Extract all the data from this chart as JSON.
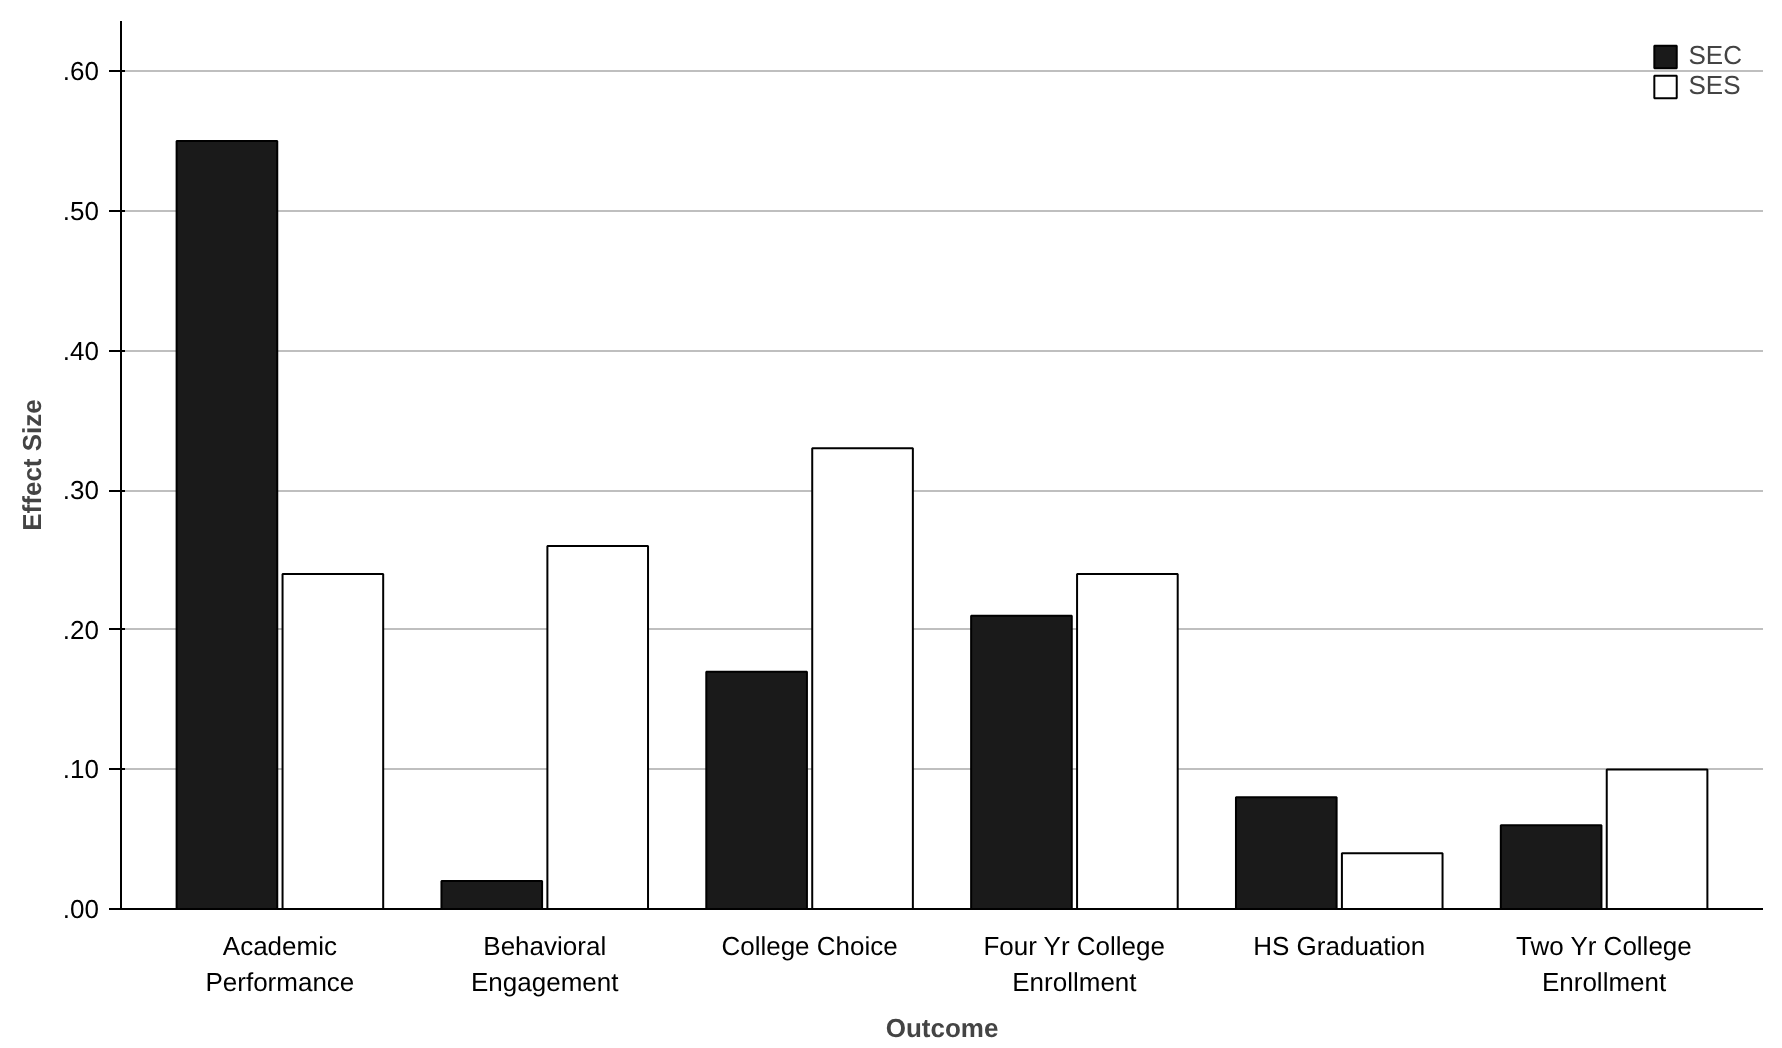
{
  "chart_data": {
    "type": "bar",
    "xlabel": "Outcome",
    "ylabel": "Effect Size",
    "categories": [
      "Academic\nPerformance",
      "Behavioral\nEngagement",
      "College Choice",
      "Four Yr College\nEnrollment",
      "HS Graduation",
      "Two Yr College\nEnrollment"
    ],
    "series": [
      {
        "name": "SEC",
        "color": "#1a1a1a",
        "values": [
          0.55,
          0.02,
          0.17,
          0.21,
          0.08,
          0.06
        ]
      },
      {
        "name": "SES",
        "color": "#ffffff",
        "values": [
          0.24,
          0.26,
          0.33,
          0.24,
          0.04,
          0.1
        ]
      }
    ],
    "ylim": [
      0,
      0.636
    ],
    "yticks": [
      {
        "value": 0,
        "label": ".00"
      },
      {
        "value": 0.1,
        "label": ".10"
      },
      {
        "value": 0.2,
        "label": ".20"
      },
      {
        "value": 0.3,
        "label": ".30"
      },
      {
        "value": 0.4,
        "label": ".40"
      },
      {
        "value": 0.5,
        "label": ".50"
      },
      {
        "value": 0.6,
        "label": ".60"
      }
    ],
    "grid": "y",
    "legend": "top right"
  }
}
